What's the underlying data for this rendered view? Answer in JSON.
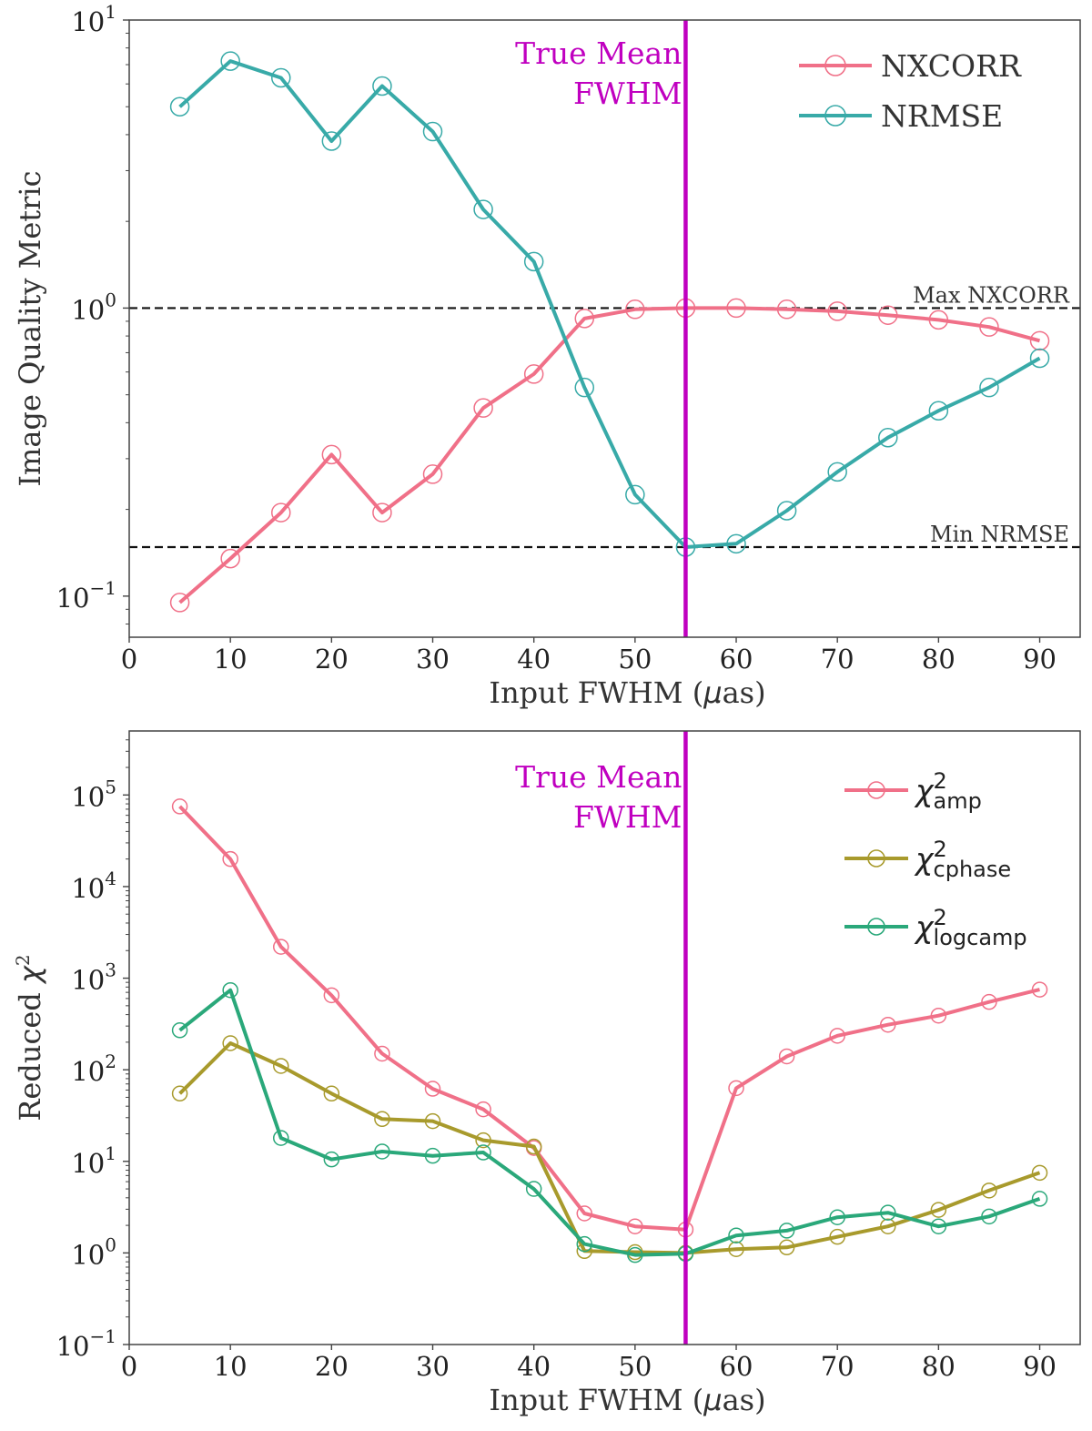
{
  "chart_data": [
    {
      "type": "line",
      "xlabel_text": "Input FWHM (",
      "xlabel_unit_symbol": "μ",
      "xlabel_unit": "as)",
      "ylabel": "Image Quality Metric",
      "xlim": [
        0,
        94
      ],
      "ylim": [
        0.072,
        10
      ],
      "yscale": "log",
      "xticks": [
        0,
        10,
        20,
        30,
        40,
        50,
        60,
        70,
        80,
        90
      ],
      "yticks": [
        {
          "value": 0.1,
          "base": "10",
          "exp": "−1"
        },
        {
          "value": 1,
          "base": "10",
          "exp": "0"
        },
        {
          "value": 10,
          "base": "10",
          "exp": "1"
        }
      ],
      "x": [
        5,
        10,
        15,
        20,
        25,
        30,
        35,
        40,
        45,
        50,
        55,
        60,
        65,
        70,
        75,
        80,
        85,
        90
      ],
      "series": [
        {
          "name": "NXCORR",
          "color": "#f07088",
          "values": [
            0.095,
            0.135,
            0.195,
            0.31,
            0.195,
            0.265,
            0.45,
            0.59,
            0.92,
            0.99,
            1.0,
            1.0,
            0.99,
            0.975,
            0.945,
            0.91,
            0.86,
            0.77
          ]
        },
        {
          "name": "NRMSE",
          "color": "#38aaa8",
          "values": [
            5.0,
            7.2,
            6.3,
            3.8,
            5.9,
            4.1,
            2.2,
            1.45,
            0.53,
            0.225,
            0.148,
            0.152,
            0.198,
            0.27,
            0.355,
            0.44,
            0.53,
            0.67
          ]
        }
      ],
      "reference_lines": [
        {
          "value": 1.0,
          "label": "Max NXCORR"
        },
        {
          "value": 0.148,
          "label": "Min NRMSE"
        }
      ],
      "vline": {
        "x": 55,
        "label_line1": "True Mean",
        "label_line2": "FWHM",
        "color": "#c000c0"
      },
      "legend": "top-right",
      "grid": false
    },
    {
      "type": "line",
      "xlabel_text": "Input FWHM (",
      "xlabel_unit_symbol": "μ",
      "xlabel_unit": "as)",
      "ylabel_text": "Reduced ",
      "ylabel_symbol": "χ",
      "ylabel_exp": "2",
      "xlim": [
        0,
        94
      ],
      "ylim": [
        0.1,
        500000
      ],
      "yscale": "log",
      "xticks": [
        0,
        10,
        20,
        30,
        40,
        50,
        60,
        70,
        80,
        90
      ],
      "yticks": [
        {
          "value": 0.1,
          "base": "10",
          "exp": "−1"
        },
        {
          "value": 1,
          "base": "10",
          "exp": "0"
        },
        {
          "value": 10,
          "base": "10",
          "exp": "1"
        },
        {
          "value": 100,
          "base": "10",
          "exp": "2"
        },
        {
          "value": 1000,
          "base": "10",
          "exp": "3"
        },
        {
          "value": 10000,
          "base": "10",
          "exp": "4"
        },
        {
          "value": 100000,
          "base": "10",
          "exp": "5"
        }
      ],
      "x": [
        5,
        10,
        15,
        20,
        25,
        30,
        35,
        40,
        45,
        50,
        55,
        60,
        65,
        70,
        75,
        80,
        85,
        90
      ],
      "series": [
        {
          "symbol": "χ",
          "sup": "2",
          "sub": "amp",
          "color": "#f07088",
          "values": [
            75000,
            20000,
            2200,
            650,
            150,
            62,
            37,
            14,
            2.7,
            1.95,
            1.8,
            63,
            140,
            235,
            310,
            390,
            550,
            750
          ]
        },
        {
          "symbol": "χ",
          "sup": "2",
          "sub": "cphase",
          "color": "#a89a2c",
          "values": [
            55,
            195,
            110,
            55,
            29,
            27.5,
            17,
            14.5,
            1.05,
            1.02,
            1.0,
            1.1,
            1.15,
            1.5,
            1.95,
            2.95,
            4.8,
            7.5
          ]
        },
        {
          "symbol": "χ",
          "sup": "2",
          "sub": "logcamp",
          "color": "#2aa87a",
          "values": [
            270,
            740,
            18,
            10.5,
            12.8,
            11.5,
            12.5,
            5.0,
            1.25,
            0.95,
            0.98,
            1.55,
            1.75,
            2.45,
            2.75,
            1.95,
            2.5,
            3.9
          ]
        }
      ],
      "vline": {
        "x": 55,
        "label_line1": "True Mean",
        "label_line2": "FWHM",
        "color": "#c000c0"
      },
      "legend": "top-right",
      "grid": false
    }
  ]
}
